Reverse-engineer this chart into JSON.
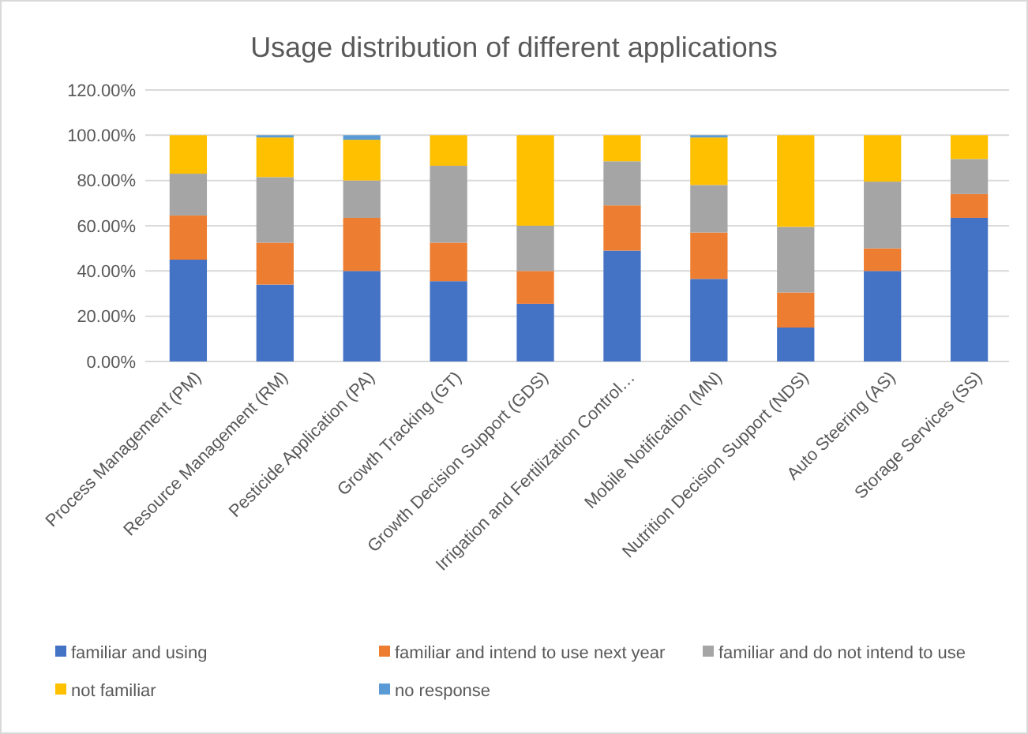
{
  "chart_data": {
    "type": "bar",
    "title": "Usage distribution of different applications",
    "stacked": true,
    "categories": [
      "Process Management (PM)",
      "Resource Management (RM)",
      "Pesticide Application (PA)",
      "Growth Tracking (GT)",
      "Growth Decision Support (GDS)",
      "Irrigation and Fertilization Control…",
      "Mobile Notification (MN)",
      "Nutrition Decision Support (NDS)",
      "Auto Steering (AS)",
      "Storage Services (SS)"
    ],
    "series": [
      {
        "name": "familiar and using",
        "color": "#4472c4",
        "values": [
          45,
          34,
          40,
          35.5,
          25.5,
          49,
          36.5,
          15,
          40,
          63.5
        ]
      },
      {
        "name": "familiar and intend to use next year",
        "color": "#ed7d31",
        "values": [
          19.5,
          18.5,
          23.5,
          17,
          14.5,
          20,
          20.5,
          15.5,
          10,
          10.5
        ]
      },
      {
        "name": "familiar and do not intend to use",
        "color": "#a5a5a5",
        "values": [
          18.5,
          29,
          16.5,
          34,
          20,
          19.5,
          21,
          29,
          29.5,
          15.5
        ]
      },
      {
        "name": "not familiar",
        "color": "#ffc000",
        "values": [
          17,
          17.5,
          18,
          13.5,
          40,
          11.5,
          21,
          40.5,
          20.5,
          10.5
        ]
      },
      {
        "name": "no response",
        "color": "#5b9bd5",
        "values": [
          0,
          1,
          2,
          0,
          0,
          0,
          1,
          0,
          0,
          0
        ]
      }
    ],
    "ylim": [
      0,
      120
    ],
    "yticks": [
      {
        "value": 0,
        "label": "0.00%"
      },
      {
        "value": 20,
        "label": "20.00%"
      },
      {
        "value": 40,
        "label": "40.00%"
      },
      {
        "value": 60,
        "label": "60.00%"
      },
      {
        "value": 80,
        "label": "80.00%"
      },
      {
        "value": 100,
        "label": "100.00%"
      },
      {
        "value": 120,
        "label": "120.00%"
      }
    ],
    "grid": "y",
    "legend": "bottom"
  }
}
